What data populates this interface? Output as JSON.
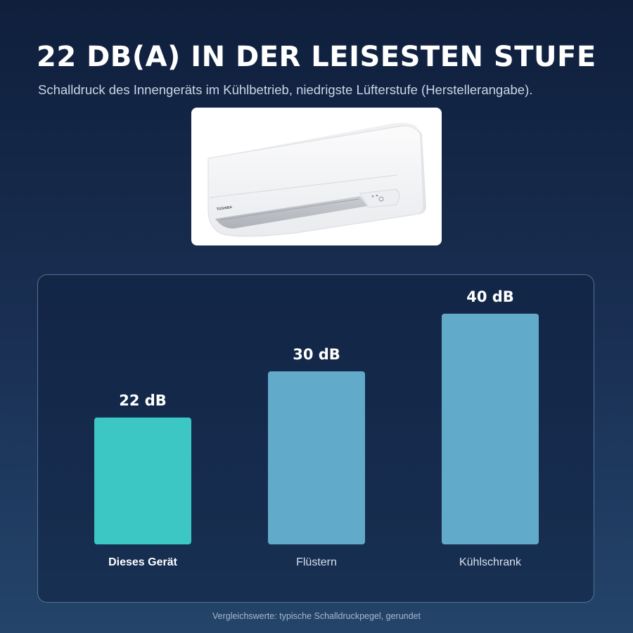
{
  "header": {
    "title": "22 DB(A) IN DER LEISESTEN STUFE",
    "subtitle": "Schalldruck des Innengeräts im Kühlbetrieb, niedrigste Lüfterstufe (Herstellerangabe)."
  },
  "product": {
    "brand_mark": "TOSHIBA"
  },
  "chart_data": {
    "type": "bar",
    "title": "",
    "xlabel": "",
    "ylabel": "",
    "categories": [
      "Dieses Gerät",
      "Flüstern",
      "Kühlschrank"
    ],
    "values": [
      22,
      30,
      40
    ],
    "value_labels": [
      "22 dB",
      "30 dB",
      "40 dB"
    ],
    "unit": "dB",
    "ylim": [
      0,
      40
    ],
    "grid": false,
    "legend": "none",
    "colors": [
      "#3cc6c4",
      "#62aac9",
      "#62aac9"
    ],
    "highlight_index": 0
  },
  "footnote": "Vergleichswerte: typische Schalldruckpegel, gerundet"
}
